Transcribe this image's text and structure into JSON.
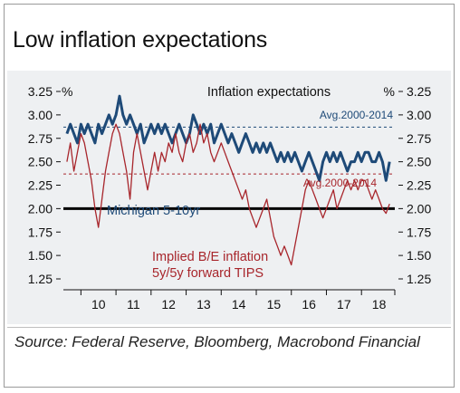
{
  "title": "Low inflation expectations",
  "source": "Source: Federal Reserve, Bloomberg, Macrobond Financial",
  "colors": {
    "michigan": "#1e4a78",
    "breakeven": "#a8262c",
    "panel": "#eef0f2",
    "reference_line": "#000000"
  },
  "chart_data": {
    "type": "line",
    "title": "Inflation expectations",
    "left_unit": "%",
    "right_unit": "%",
    "ylim": [
      1.25,
      3.25
    ],
    "ytick_labels": [
      "3.25",
      "3.00",
      "2.75",
      "2.50",
      "2.25",
      "2.00",
      "1.75",
      "1.50",
      "1.25"
    ],
    "xlim": [
      2009.5,
      2018.95
    ],
    "xtick_labels": [
      "10",
      "11",
      "12",
      "13",
      "14",
      "15",
      "16",
      "17",
      "18"
    ],
    "grid": false,
    "reference_lines": [
      {
        "label": "Avg.2000-2014",
        "value": 2.87,
        "style": "dashed",
        "color": "#1e4a78"
      },
      {
        "label": "Avg.2000-2014",
        "value": 2.37,
        "style": "dashed",
        "color": "#a8262c"
      },
      {
        "label": "",
        "value": 2.0,
        "style": "solid",
        "color": "#000000"
      }
    ],
    "series": [
      {
        "name": "Michigan 5-10yr",
        "color": "#1e4a78",
        "x": [
          2009.6,
          2009.7,
          2009.8,
          2009.9,
          2010.0,
          2010.1,
          2010.2,
          2010.3,
          2010.4,
          2010.5,
          2010.6,
          2010.7,
          2010.8,
          2010.9,
          2011.0,
          2011.1,
          2011.2,
          2011.3,
          2011.4,
          2011.5,
          2011.6,
          2011.7,
          2011.8,
          2011.9,
          2012.0,
          2012.1,
          2012.2,
          2012.3,
          2012.4,
          2012.5,
          2012.6,
          2012.7,
          2012.8,
          2012.9,
          2013.0,
          2013.1,
          2013.2,
          2013.3,
          2013.4,
          2013.5,
          2013.6,
          2013.7,
          2013.8,
          2013.9,
          2014.0,
          2014.1,
          2014.2,
          2014.3,
          2014.4,
          2014.5,
          2014.6,
          2014.7,
          2014.8,
          2014.9,
          2015.0,
          2015.1,
          2015.2,
          2015.3,
          2015.4,
          2015.5,
          2015.6,
          2015.7,
          2015.8,
          2015.9,
          2016.0,
          2016.1,
          2016.2,
          2016.3,
          2016.4,
          2016.5,
          2016.6,
          2016.7,
          2016.8,
          2016.9,
          2017.0,
          2017.1,
          2017.2,
          2017.3,
          2017.4,
          2017.5,
          2017.6,
          2017.7,
          2017.8,
          2017.9,
          2018.0,
          2018.1,
          2018.2,
          2018.3,
          2018.4,
          2018.5,
          2018.6,
          2018.7,
          2018.8
        ],
        "values": [
          2.8,
          2.9,
          2.8,
          2.7,
          2.9,
          2.8,
          2.9,
          2.8,
          2.7,
          2.9,
          2.8,
          2.9,
          3.0,
          2.9,
          3.0,
          3.2,
          3.0,
          2.9,
          3.0,
          2.9,
          2.8,
          2.9,
          2.7,
          2.8,
          2.9,
          2.8,
          2.9,
          2.8,
          2.9,
          2.8,
          2.7,
          2.8,
          2.9,
          2.8,
          2.7,
          2.8,
          3.0,
          2.9,
          2.8,
          2.9,
          2.8,
          2.9,
          2.7,
          2.8,
          2.9,
          2.8,
          2.7,
          2.8,
          2.7,
          2.6,
          2.7,
          2.8,
          2.7,
          2.6,
          2.7,
          2.6,
          2.7,
          2.6,
          2.7,
          2.6,
          2.5,
          2.6,
          2.5,
          2.6,
          2.5,
          2.6,
          2.5,
          2.4,
          2.5,
          2.6,
          2.5,
          2.4,
          2.3,
          2.5,
          2.6,
          2.5,
          2.6,
          2.5,
          2.6,
          2.5,
          2.4,
          2.5,
          2.5,
          2.6,
          2.5,
          2.6,
          2.6,
          2.5,
          2.5,
          2.6,
          2.5,
          2.3,
          2.5
        ]
      },
      {
        "name": "Implied B/E inflation 5y/5y forward TIPS",
        "color": "#a8262c",
        "x": [
          2009.6,
          2009.7,
          2009.8,
          2009.9,
          2010.0,
          2010.1,
          2010.2,
          2010.3,
          2010.4,
          2010.5,
          2010.6,
          2010.7,
          2010.8,
          2010.9,
          2011.0,
          2011.1,
          2011.2,
          2011.3,
          2011.4,
          2011.5,
          2011.6,
          2011.7,
          2011.8,
          2011.9,
          2012.0,
          2012.1,
          2012.2,
          2012.3,
          2012.4,
          2012.5,
          2012.6,
          2012.7,
          2012.8,
          2012.9,
          2013.0,
          2013.1,
          2013.2,
          2013.3,
          2013.4,
          2013.5,
          2013.6,
          2013.7,
          2013.8,
          2013.9,
          2014.0,
          2014.1,
          2014.2,
          2014.3,
          2014.4,
          2014.5,
          2014.6,
          2014.7,
          2014.8,
          2014.9,
          2015.0,
          2015.1,
          2015.2,
          2015.3,
          2015.4,
          2015.5,
          2015.6,
          2015.7,
          2015.8,
          2015.9,
          2016.0,
          2016.1,
          2016.2,
          2016.3,
          2016.4,
          2016.5,
          2016.6,
          2016.7,
          2016.8,
          2016.9,
          2017.0,
          2017.1,
          2017.2,
          2017.3,
          2017.4,
          2017.5,
          2017.6,
          2017.7,
          2017.8,
          2017.9,
          2018.0,
          2018.1,
          2018.2,
          2018.3,
          2018.4,
          2018.5,
          2018.6,
          2018.7,
          2018.8
        ],
        "values": [
          2.5,
          2.7,
          2.4,
          2.6,
          2.8,
          2.7,
          2.5,
          2.3,
          2.0,
          1.8,
          2.1,
          2.4,
          2.6,
          2.8,
          2.9,
          2.8,
          2.6,
          2.4,
          2.1,
          2.6,
          2.8,
          2.6,
          2.4,
          2.2,
          2.4,
          2.6,
          2.4,
          2.6,
          2.5,
          2.7,
          2.6,
          2.8,
          2.6,
          2.5,
          2.7,
          2.8,
          2.6,
          2.7,
          2.9,
          2.7,
          2.8,
          2.6,
          2.5,
          2.6,
          2.7,
          2.6,
          2.5,
          2.4,
          2.3,
          2.2,
          2.1,
          2.2,
          2.0,
          1.9,
          1.8,
          1.9,
          2.0,
          2.1,
          1.9,
          1.7,
          1.6,
          1.5,
          1.6,
          1.5,
          1.4,
          1.6,
          1.8,
          2.0,
          2.2,
          2.3,
          2.2,
          2.1,
          2.0,
          1.9,
          2.0,
          2.1,
          2.2,
          2.0,
          2.1,
          2.2,
          2.3,
          2.2,
          2.3,
          2.2,
          2.3,
          2.3,
          2.2,
          2.1,
          2.2,
          2.1,
          2.0,
          1.95,
          2.05
        ]
      }
    ]
  }
}
